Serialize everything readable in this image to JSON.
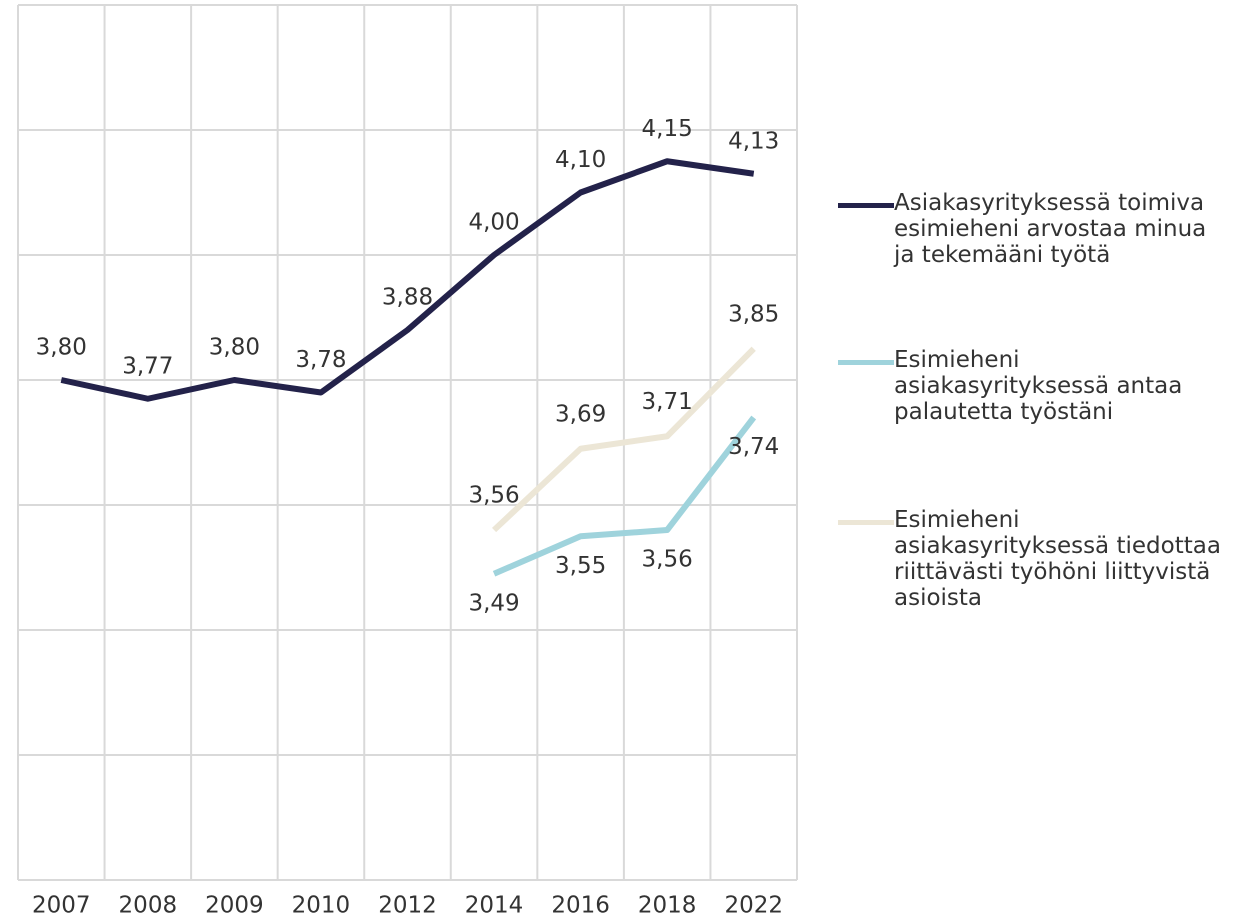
{
  "chart_data": {
    "type": "line",
    "categories": [
      "2007",
      "2008",
      "2009",
      "2010",
      "2012",
      "2014",
      "2016",
      "2018",
      "2022"
    ],
    "series": [
      {
        "name": "Asiakasyrityksessä toimiva esimieheni arvostaa minua ja tekemääni työtä",
        "color": "#23224a",
        "values": [
          3.8,
          3.77,
          3.8,
          3.78,
          3.88,
          4.0,
          4.1,
          4.15,
          4.13
        ],
        "value_labels": [
          "3,80",
          "3,77",
          "3,80",
          "3,78",
          "3,88",
          "4,00",
          "4,10",
          "4,15",
          "4,13"
        ]
      },
      {
        "name": "Esimieheni asiakasyrityksessä antaa palautetta työstäni",
        "color": "#9fd3dc",
        "values": [
          null,
          null,
          null,
          null,
          null,
          3.49,
          3.55,
          3.56,
          3.74
        ],
        "value_labels": [
          null,
          null,
          null,
          null,
          null,
          "3,49",
          "3,55",
          "3,56",
          "3,74"
        ]
      },
      {
        "name": "Esimieheni asiakasyrityksessä tiedottaa riittävästi työhöni liittyvistä asioista",
        "color": "#ece6d6",
        "values": [
          null,
          null,
          null,
          null,
          null,
          3.56,
          3.69,
          3.71,
          3.85
        ],
        "value_labels": [
          null,
          null,
          null,
          null,
          null,
          "3,56",
          "3,69",
          "3,71",
          "3,85"
        ]
      }
    ],
    "ylim": [
      3.0,
      4.4
    ],
    "yticks": [
      3.0,
      3.2,
      3.4,
      3.6,
      3.8,
      4.0,
      4.2,
      4.4
    ],
    "grid": true,
    "legend": "right"
  }
}
